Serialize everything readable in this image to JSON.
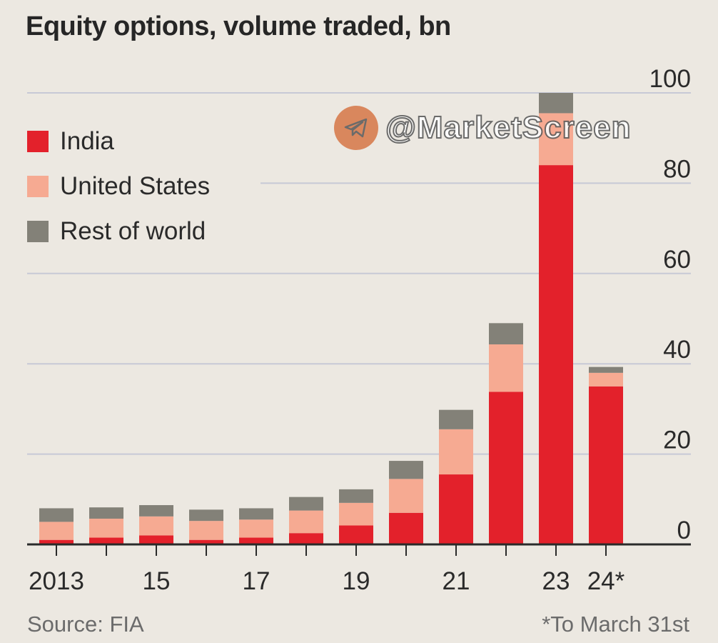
{
  "title": "Equity options, volume traded, bn",
  "source": "Source: FIA",
  "footnote": "*To March 31st",
  "watermark": {
    "text": "@MarketScreen",
    "icon": "telegram-icon"
  },
  "legend": [
    {
      "label": "India",
      "color": "#e3212b"
    },
    {
      "label": "United States",
      "color": "#f6aa92"
    },
    {
      "label": "Rest of world",
      "color": "#838178"
    }
  ],
  "chart_data": {
    "type": "bar",
    "stacked": true,
    "categories": [
      "2013",
      "2014",
      "2015",
      "2016",
      "2017",
      "2018",
      "2019",
      "2020",
      "2021",
      "2022",
      "2023",
      "2024*"
    ],
    "x_tick_labels": [
      "2013",
      "",
      "15",
      "",
      "17",
      "",
      "19",
      "",
      "21",
      "",
      "23",
      "24*"
    ],
    "series": [
      {
        "name": "India",
        "color": "#e3212b",
        "values": [
          1.0,
          1.5,
          2.0,
          1.0,
          1.5,
          2.5,
          4.2,
          7.0,
          15.5,
          33.8,
          84.0,
          35.0
        ]
      },
      {
        "name": "United States",
        "color": "#f6aa92",
        "values": [
          4.0,
          4.2,
          4.2,
          4.2,
          4.0,
          5.0,
          5.0,
          7.5,
          10.0,
          10.5,
          11.5,
          3.0
        ]
      },
      {
        "name": "Rest of world",
        "color": "#838178",
        "values": [
          3.0,
          2.5,
          2.5,
          2.5,
          2.5,
          3.0,
          3.0,
          4.0,
          4.3,
          4.7,
          4.5,
          1.3
        ]
      }
    ],
    "y_ticks": [
      "0",
      "20",
      "40",
      "60",
      "80",
      "100"
    ],
    "ylim": [
      0,
      100
    ],
    "grid": true,
    "y_axis_side": "right",
    "legend_position": "top-left"
  }
}
